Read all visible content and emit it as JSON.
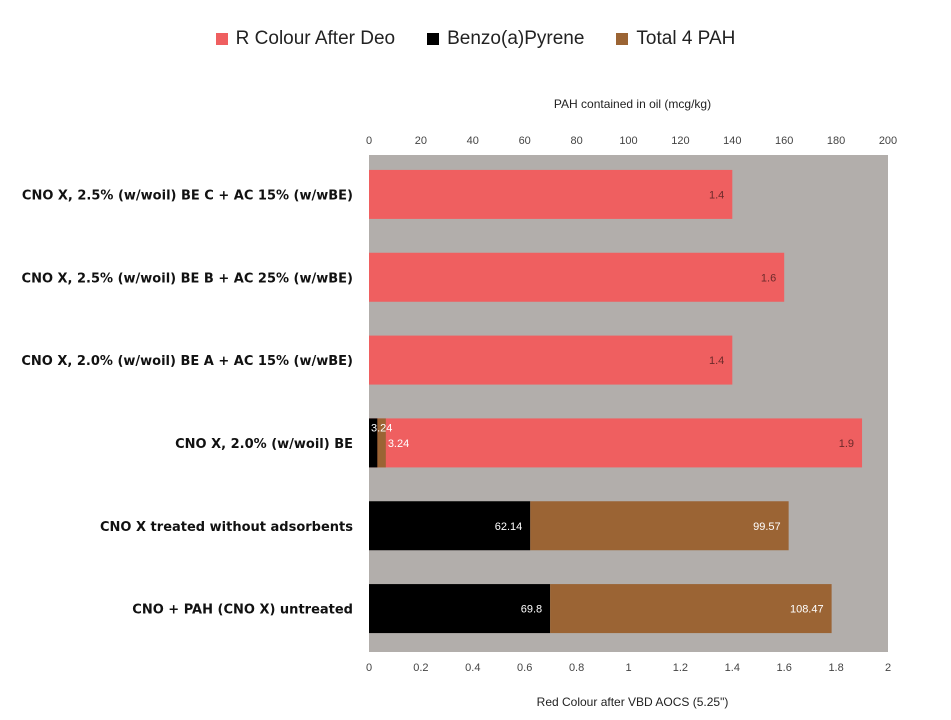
{
  "chart_data": {
    "type": "bar",
    "orientation": "horizontal",
    "legend_position": "top",
    "legend": [
      {
        "name": "R Colour After Deo",
        "color": "#ef5f60"
      },
      {
        "name": "Benzo(a)Pyrene",
        "color": "#000000"
      },
      {
        "name": "Total 4 PAH",
        "color": "#9b6434"
      }
    ],
    "background_color": "#b2aeab",
    "top_axis": {
      "title": "PAH contained in oil (mcg/kg)",
      "range": [
        0,
        200
      ],
      "ticks": [
        "0",
        "20",
        "40",
        "60",
        "80",
        "100",
        "120",
        "140",
        "160",
        "180",
        "200"
      ]
    },
    "bottom_axis": {
      "title": "Red Colour after VBD AOCS (5.25\")",
      "range": [
        0,
        2
      ],
      "ticks": [
        "0",
        "0.2",
        "0.4",
        "0.6",
        "0.8",
        "1",
        "1.2",
        "1.4",
        "1.6",
        "1.8",
        "2"
      ]
    },
    "categories": [
      "CNO X, 2.5% (w/woil) BE C + AC 15% (w/wBE)",
      "CNO X, 2.5% (w/woil) BE B + AC 25% (w/wBE)",
      "CNO X, 2.0% (w/woil) BE A + AC 15% (w/wBE)",
      "CNO X, 2.0% (w/woil) BE",
      "CNO X treated without adsorbents",
      "CNO + PAH (CNO X) untreated"
    ],
    "series": [
      {
        "name": "R Colour After Deo",
        "axis": "bottom",
        "color": "#ef5f60",
        "values": [
          1.4,
          1.6,
          1.4,
          1.9,
          null,
          null
        ],
        "labels": [
          "1.4",
          "1.6",
          "1.4",
          "1.9",
          "",
          ""
        ]
      },
      {
        "name": "Benzo(a)Pyrene",
        "axis": "top",
        "color": "#000000",
        "values": [
          null,
          null,
          null,
          3.24,
          62.14,
          69.8
        ],
        "labels": [
          "",
          "",
          "",
          "3.24",
          "62.14",
          "69.8"
        ]
      },
      {
        "name": "Total 4 PAH",
        "axis": "top",
        "color": "#9b6434",
        "values": [
          null,
          null,
          null,
          3.24,
          99.57,
          108.47
        ],
        "labels": [
          "",
          "",
          "",
          "3.24",
          "99.57",
          "108.47"
        ]
      }
    ]
  }
}
